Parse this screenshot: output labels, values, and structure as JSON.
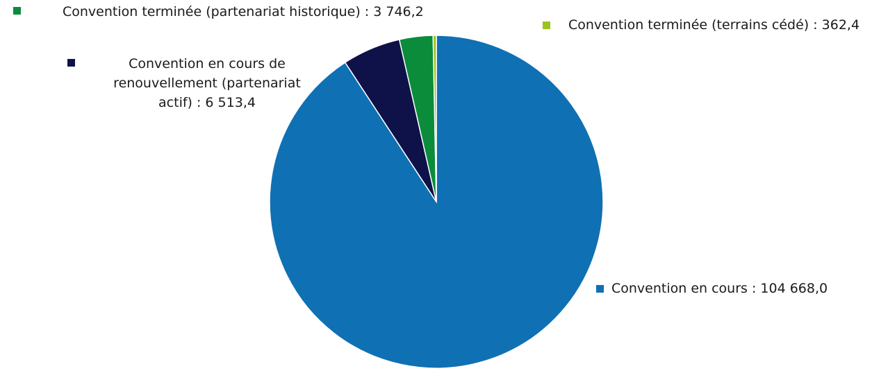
{
  "chart_data": {
    "type": "pie",
    "values": [
      104668.0,
      6513.4,
      3746.2,
      362.4
    ],
    "value_labels": [
      "Convention en cours : 104 668,0",
      "Convention en cours de renouvellement (partenariat actif) : 6 513,4",
      "Convention terminée (partenariat historique) : 3 746,2",
      "Convention terminée (terrains cédé) : 362,4"
    ],
    "colors": [
      "#0f70b4",
      "#0f1149",
      "#0b8c3b",
      "#9cc41d"
    ]
  }
}
